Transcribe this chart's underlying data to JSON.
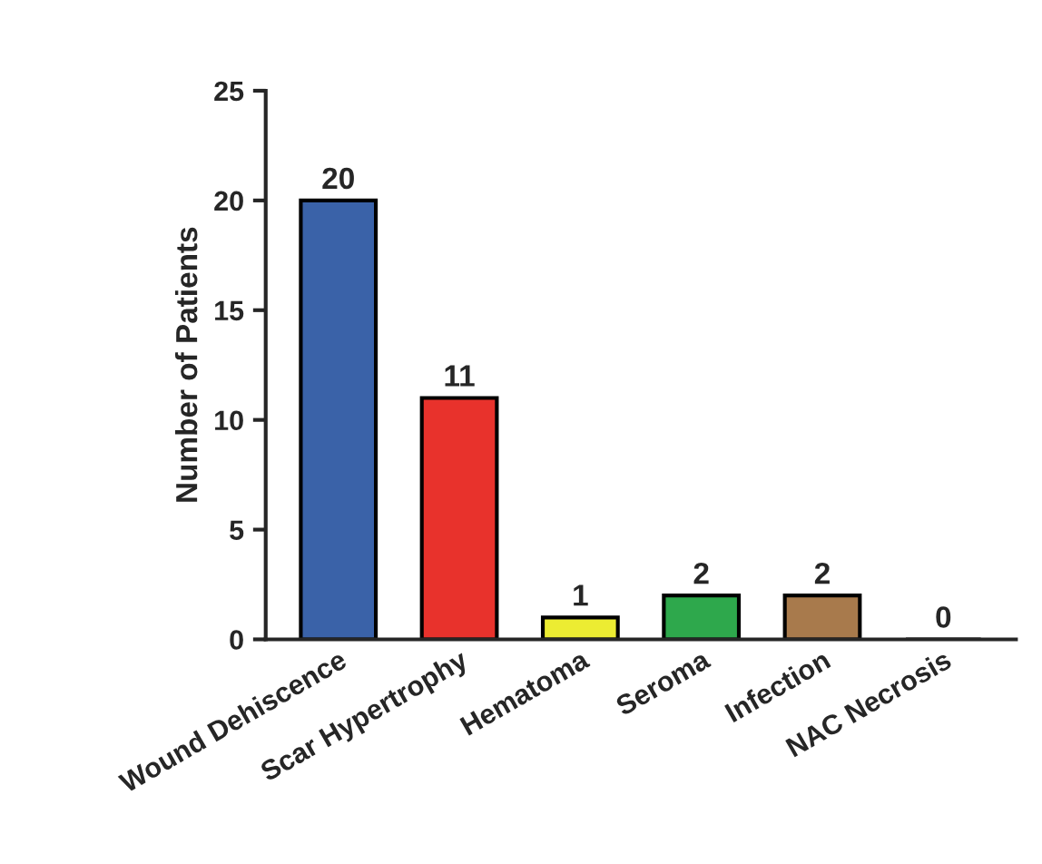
{
  "chart_data": {
    "type": "bar",
    "categories": [
      "Wound Dehiscence",
      "Scar Hypertrophy",
      "Hematoma",
      "Seroma",
      "Infection",
      "NAC Necrosis"
    ],
    "values": [
      20,
      11,
      1,
      2,
      2,
      0
    ],
    "colors": [
      "#3a62a8",
      "#e8322c",
      "#ecec32",
      "#2ea84c",
      "#a87a4c",
      "#000000"
    ],
    "ylabel": "Number of Patients",
    "ylim": [
      0,
      25
    ],
    "yticks": [
      0,
      5,
      10,
      15,
      20,
      25
    ],
    "data_labels": true,
    "grid": false,
    "legend": false
  }
}
